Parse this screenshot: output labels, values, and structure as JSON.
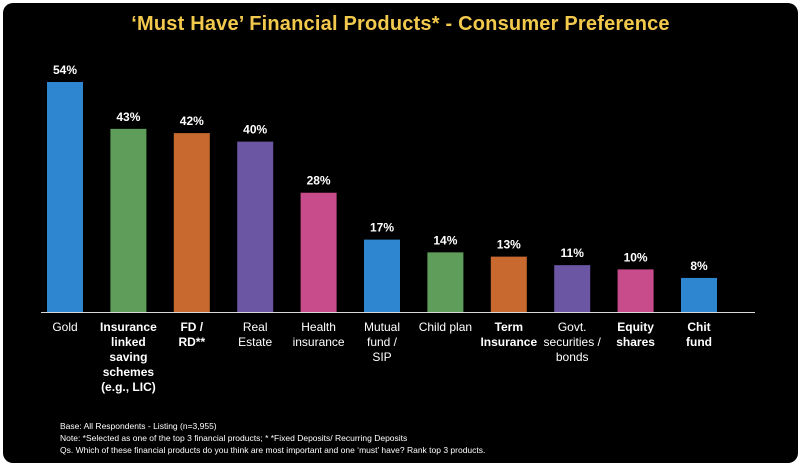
{
  "title": "‘Must Have’ Financial Products* - Consumer Preference",
  "chart_data": {
    "type": "bar",
    "title": "‘Must Have’ Financial Products* - Consumer Preference",
    "categories": [
      [
        "Gold"
      ],
      [
        "Insurance",
        "linked",
        "saving",
        "schemes",
        "(e.g., LIC)"
      ],
      [
        "FD /",
        "RD**"
      ],
      [
        "Real",
        "Estate"
      ],
      [
        "Health",
        "insurance"
      ],
      [
        "Mutual",
        "fund /",
        "SIP"
      ],
      [
        "Child plan"
      ],
      [
        "Term",
        "Insurance"
      ],
      [
        "Govt.",
        "securities /",
        "bonds"
      ],
      [
        "Equity",
        "shares"
      ],
      [
        "Chit",
        "fund"
      ]
    ],
    "bold_categories": [
      1,
      2,
      7,
      9,
      10
    ],
    "values": [
      54,
      43,
      42,
      40,
      28,
      17,
      14,
      13,
      11,
      10,
      8
    ],
    "value_labels": [
      "54%",
      "43%",
      "42%",
      "40%",
      "28%",
      "17%",
      "14%",
      "13%",
      "11%",
      "10%",
      "8%"
    ],
    "colors": [
      "#2e86d1",
      "#5f9e5a",
      "#c8692f",
      "#6a56a3",
      "#c84b8c",
      "#2e86d1",
      "#5f9e5a",
      "#c8692f",
      "#6a56a3",
      "#c84b8c",
      "#2e86d1"
    ],
    "ylim": [
      0,
      54
    ],
    "xlabel": "",
    "ylabel": "",
    "grid": false,
    "legend": "none"
  },
  "notes": {
    "base": "Base: All Respondents - Listing (n=3,955)",
    "note": "Note: *Selected as one of the top 3 financial products; * *Fixed Deposits/ Recurring Deposits",
    "question": "Qs. Which of these financial products do you think are most important and one ‘must’ have? Rank top 3 products."
  }
}
